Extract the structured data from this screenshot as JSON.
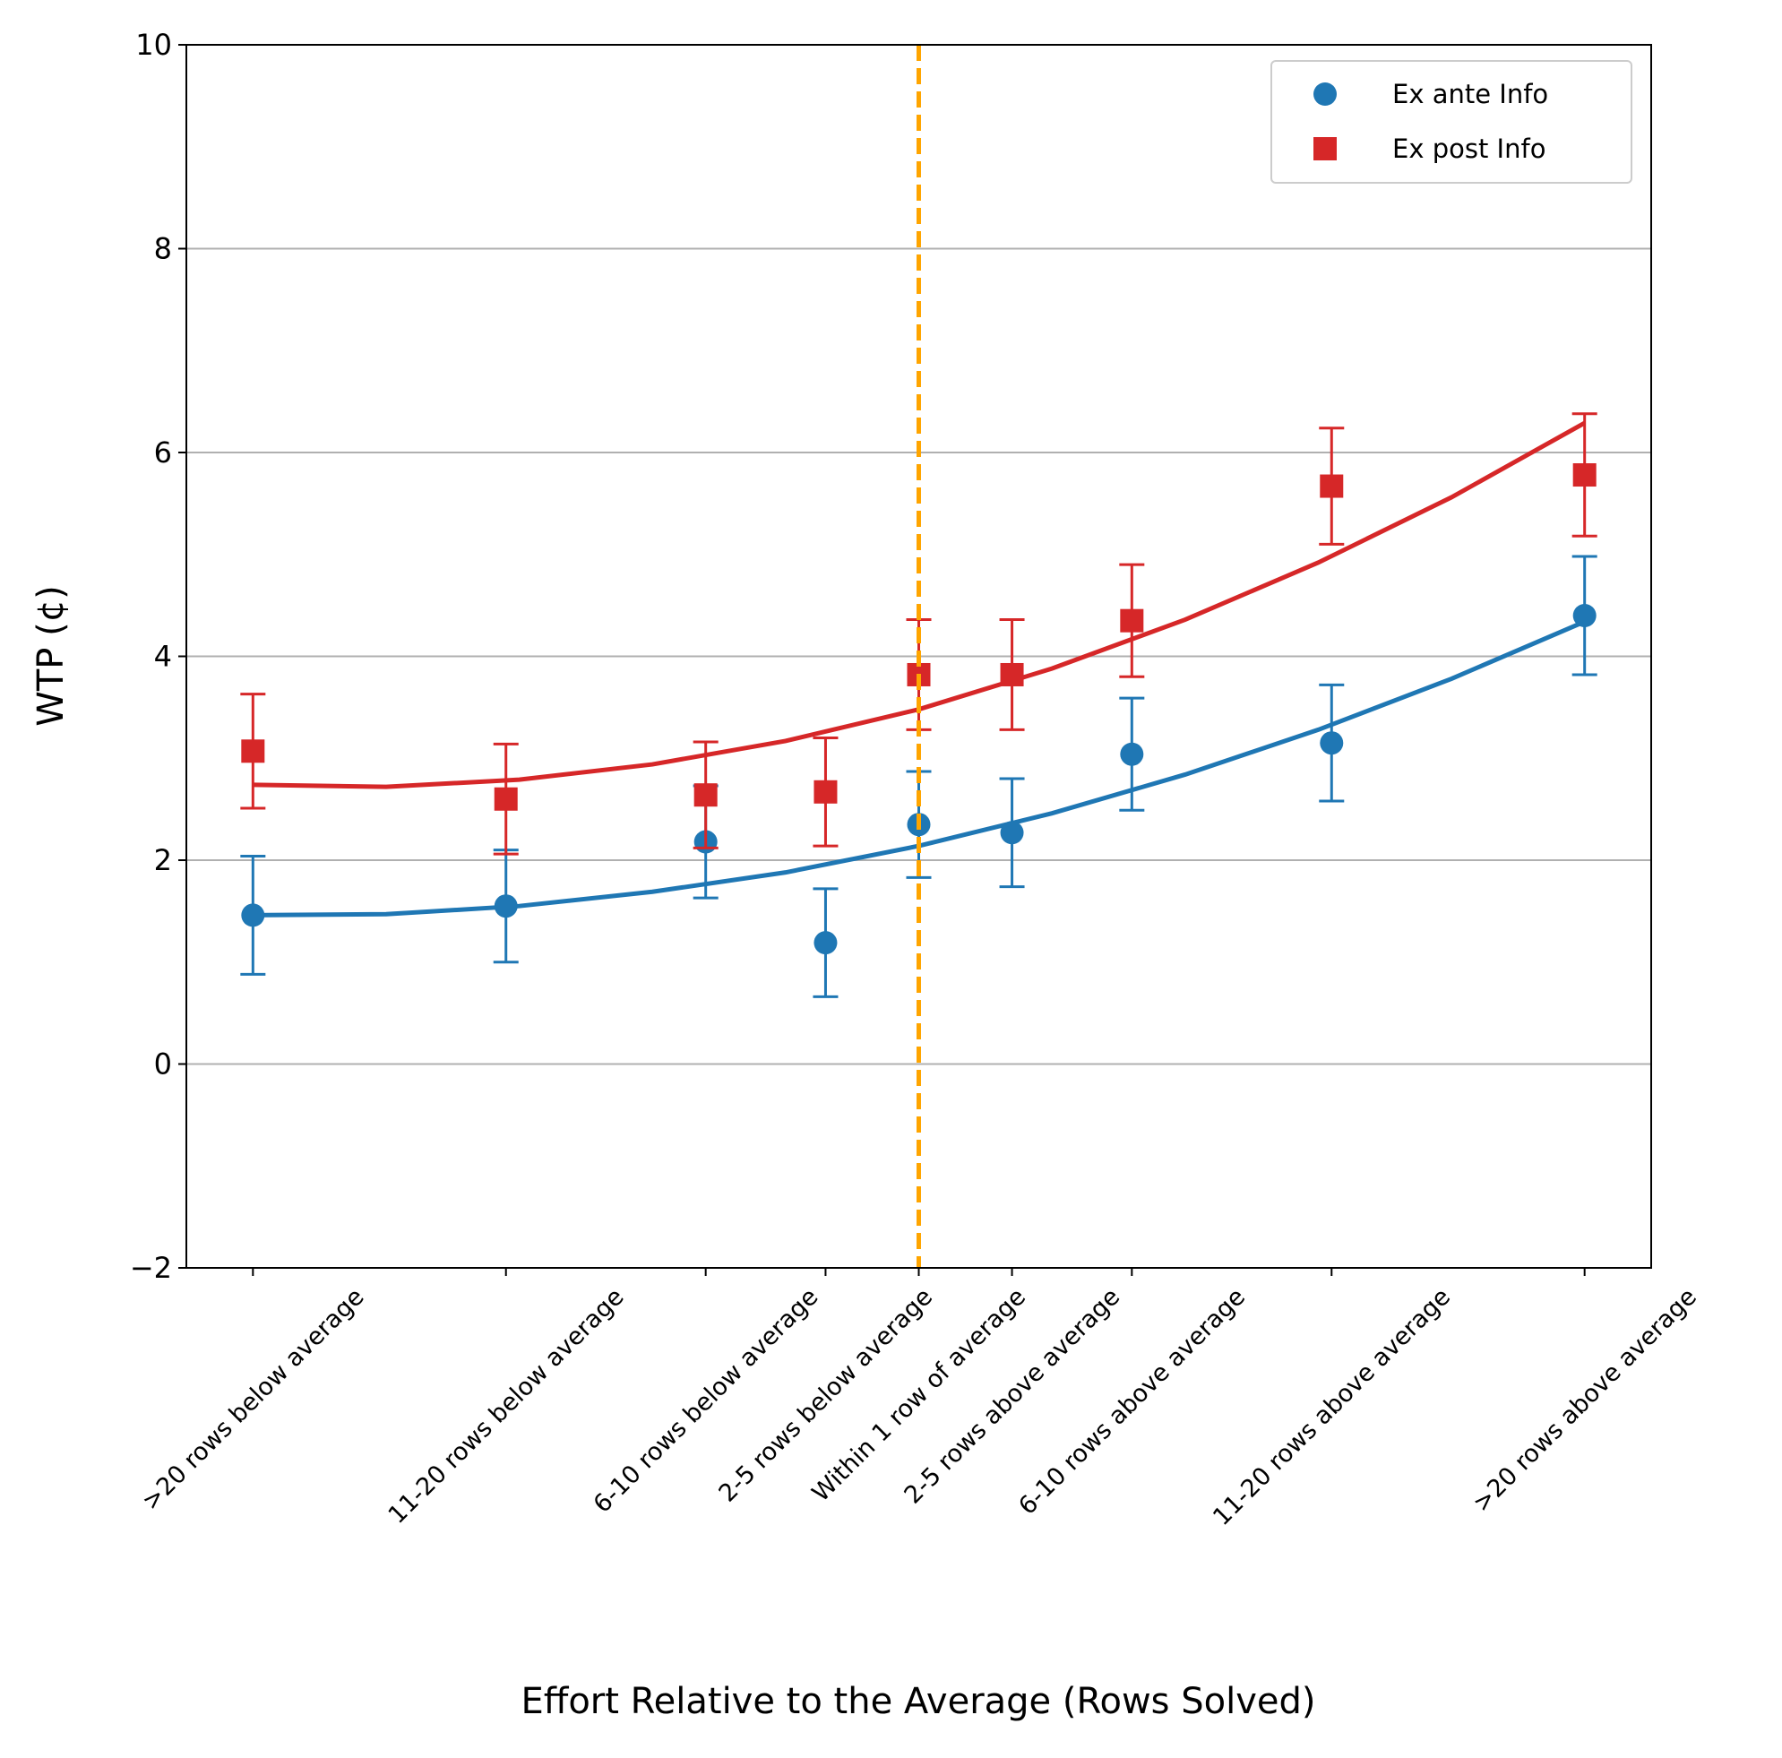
{
  "chart_data": {
    "type": "errorbar",
    "xlabel": "Effort Relative to the Average (Rows Solved)",
    "ylabel": "WTP (¢)",
    "x": [
      -25,
      -15.5,
      -8,
      -3.5,
      0,
      3.5,
      8,
      15.5,
      25
    ],
    "xlim": [
      -27.5,
      27.5
    ],
    "xticks": [
      {
        "value": -25,
        "label": ">20 rows below average"
      },
      {
        "value": -15.5,
        "label": "11-20 rows below average"
      },
      {
        "value": -8,
        "label": "6-10 rows below average"
      },
      {
        "value": -3.5,
        "label": "2-5 rows below average"
      },
      {
        "value": 0,
        "label": "Within 1 row of average"
      },
      {
        "value": 3.5,
        "label": "2-5 rows above average"
      },
      {
        "value": 8,
        "label": "6-10 rows above average"
      },
      {
        "value": 15.5,
        "label": "11-20 rows above average"
      },
      {
        "value": 25,
        "label": ">20 rows above average"
      }
    ],
    "ylim": [
      -2,
      10
    ],
    "yticks": [
      {
        "value": -2,
        "label": "−2"
      },
      0,
      2,
      4,
      6,
      8,
      10
    ],
    "grid": "y",
    "legend": "upper right",
    "reference_line": {
      "x": 0,
      "color": "#ffa500"
    },
    "series": [
      {
        "name": "Ex ante Info",
        "color": "#1f77b4",
        "marker": "circle",
        "values": [
          1.46,
          1.55,
          2.18,
          1.19,
          2.35,
          2.27,
          3.04,
          3.15,
          4.4
        ],
        "errors": [
          0.58,
          0.55,
          0.55,
          0.53,
          0.52,
          0.53,
          0.55,
          0.57,
          0.58
        ],
        "fit": {
          "x": [
            -25,
            -20,
            -15,
            -10,
            -5,
            0,
            5,
            10,
            15,
            20,
            25
          ],
          "values": [
            1.46,
            1.47,
            1.55,
            1.69,
            1.88,
            2.14,
            2.46,
            2.84,
            3.28,
            3.78,
            4.34
          ]
        }
      },
      {
        "name": "Ex post Info",
        "color": "#d62728",
        "marker": "square",
        "values": [
          3.07,
          2.6,
          2.64,
          2.67,
          3.82,
          3.82,
          4.35,
          5.67,
          5.78
        ],
        "errors": [
          0.56,
          0.54,
          0.52,
          0.53,
          0.54,
          0.54,
          0.55,
          0.57,
          0.6
        ],
        "fit": {
          "x": [
            -25,
            -20,
            -15,
            -10,
            -5,
            0,
            5,
            10,
            15,
            20,
            25
          ],
          "values": [
            2.74,
            2.72,
            2.79,
            2.94,
            3.17,
            3.48,
            3.88,
            4.36,
            4.92,
            5.56,
            6.29
          ]
        }
      }
    ]
  }
}
